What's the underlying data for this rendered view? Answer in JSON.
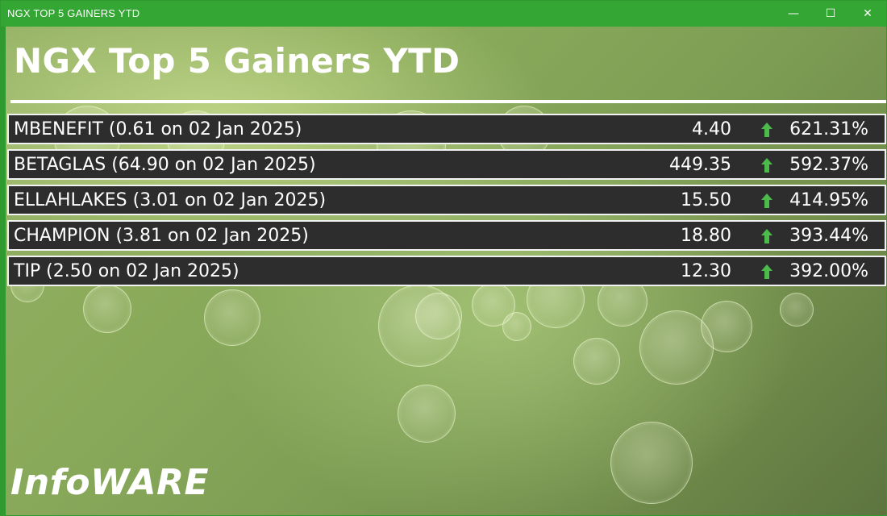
{
  "window": {
    "title": "NGX TOP 5 GAINERS YTD",
    "controls": {
      "minimize": "—",
      "maximize": "☐",
      "close": "✕"
    }
  },
  "header": {
    "title": "NGX Top 5 Gainers YTD"
  },
  "gainers": [
    {
      "label": "MBENEFIT (0.61 on 02 Jan 2025)",
      "price": "4.40",
      "change": "621.31%"
    },
    {
      "label": "BETAGLAS (64.90 on 02 Jan 2025)",
      "price": "449.35",
      "change": "592.37%"
    },
    {
      "label": "ELLAHLAKES (3.01 on 02 Jan 2025)",
      "price": "15.50",
      "change": "414.95%"
    },
    {
      "label": "CHAMPION (3.81 on 02 Jan 2025)",
      "price": "18.80",
      "change": "393.44%"
    },
    {
      "label": "TIP (2.50 on 02 Jan 2025)",
      "price": "12.30",
      "change": "392.00%"
    }
  ],
  "footer": {
    "logo_text": "InfoWARE"
  },
  "colors": {
    "titlebar": "#33a633",
    "row_bg": "#2d2d2d",
    "arrow_up": "#4cbb4c"
  }
}
